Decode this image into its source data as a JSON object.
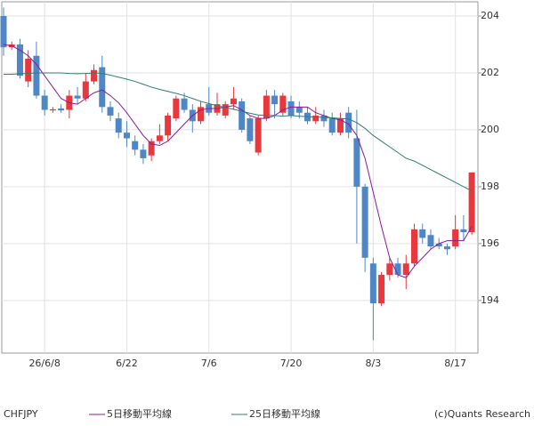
{
  "chart_data": {
    "type": "candlestick",
    "title": "CHFJPY",
    "credit": "(c)Quants Research",
    "categories": [
      null,
      null,
      null,
      null,
      null,
      "26/6/8",
      null,
      null,
      null,
      null,
      null,
      null,
      null,
      null,
      null,
      "6/22",
      null,
      null,
      null,
      null,
      null,
      null,
      null,
      null,
      null,
      "7/6",
      null,
      null,
      null,
      null,
      null,
      null,
      null,
      null,
      null,
      "7/20",
      null,
      null,
      null,
      null,
      null,
      null,
      null,
      null,
      null,
      "8/3",
      null,
      null,
      null,
      null,
      null,
      null,
      null,
      null,
      null,
      "8/17",
      null,
      null
    ],
    "open": [
      204.0,
      202.9,
      203.0,
      201.7,
      202.6,
      201.2,
      200.68,
      200.75,
      200.7,
      201.2,
      201.1,
      201.7,
      202.2,
      200.8,
      200.4,
      199.9,
      199.6,
      199.3,
      199.1,
      199.6,
      199.8,
      200.4,
      201.1,
      200.7,
      200.3,
      200.9,
      200.6,
      200.5,
      200.9,
      201.0,
      200.4,
      199.2,
      200.4,
      201.2,
      200.6,
      201.0,
      200.8,
      200.6,
      200.3,
      200.5,
      200.4,
      199.9,
      200.6,
      199.7,
      198.0,
      195.3,
      193.9,
      194.9,
      195.3,
      194.9,
      195.3,
      196.5,
      196.3,
      196.0,
      195.9,
      195.9,
      196.5,
      196.4
    ],
    "high": [
      204.3,
      203.1,
      203.2,
      202.8,
      203.1,
      201.4,
      200.8,
      200.9,
      201.4,
      201.5,
      202.0,
      202.3,
      202.6,
      201.0,
      200.6,
      200.3,
      199.8,
      199.5,
      199.7,
      200.2,
      200.6,
      201.2,
      201.3,
      200.9,
      201.0,
      201.5,
      201.3,
      201.0,
      201.5,
      201.1,
      200.5,
      200.5,
      201.4,
      201.4,
      201.3,
      201.2,
      201.0,
      200.8,
      200.8,
      200.7,
      200.6,
      200.6,
      200.8,
      200.7,
      198.1,
      195.5,
      195.0,
      195.5,
      195.5,
      195.6,
      196.7,
      196.7,
      196.5,
      196.2,
      196.0,
      197.0,
      197.0,
      198.5
    ],
    "low": [
      202.6,
      202.8,
      201.8,
      201.5,
      201.1,
      200.5,
      200.6,
      200.6,
      200.4,
      200.9,
      201.0,
      201.6,
      200.6,
      200.3,
      199.7,
      199.4,
      199.1,
      198.8,
      198.9,
      199.5,
      199.6,
      200.3,
      200.6,
      199.9,
      200.2,
      200.5,
      200.5,
      200.4,
      200.7,
      199.9,
      199.5,
      199.1,
      200.3,
      200.4,
      200.5,
      200.4,
      200.4,
      200.2,
      200.2,
      200.1,
      199.8,
      199.8,
      199.7,
      196.0,
      195.0,
      192.6,
      193.8,
      194.7,
      194.8,
      194.4,
      195.2,
      196.0,
      195.8,
      195.8,
      195.6,
      195.8,
      196.1,
      196.3
    ],
    "close": [
      202.9,
      203.0,
      201.9,
      202.5,
      201.2,
      200.7,
      200.72,
      200.68,
      201.2,
      201.1,
      201.7,
      202.1,
      200.8,
      200.5,
      199.9,
      199.7,
      199.3,
      199.0,
      199.6,
      199.8,
      200.5,
      201.1,
      200.7,
      200.3,
      200.8,
      200.6,
      200.9,
      200.9,
      201.1,
      200.0,
      199.6,
      200.4,
      201.2,
      200.9,
      201.2,
      200.5,
      200.6,
      200.3,
      200.5,
      200.3,
      199.9,
      200.4,
      199.9,
      198.0,
      195.5,
      193.9,
      194.9,
      195.3,
      194.9,
      195.3,
      196.5,
      196.2,
      195.9,
      195.9,
      195.8,
      196.5,
      196.4,
      198.5
    ],
    "up_color": "#e8383d",
    "down_color": "#4f86c6",
    "lines": [
      {
        "name": "5日移動平均線",
        "color": "#8b1a9b",
        "values": [
          203.0,
          202.95,
          202.8,
          202.6,
          202.3,
          201.9,
          201.5,
          201.1,
          200.95,
          200.9,
          201.1,
          201.3,
          201.4,
          201.2,
          200.95,
          200.6,
          200.2,
          199.8,
          199.5,
          199.45,
          199.6,
          199.9,
          200.2,
          200.5,
          200.7,
          200.75,
          200.75,
          200.8,
          200.85,
          200.7,
          200.5,
          200.4,
          200.4,
          200.5,
          200.7,
          200.8,
          200.8,
          200.8,
          200.6,
          200.5,
          200.4,
          200.35,
          200.2,
          199.8,
          199.0,
          197.8,
          196.6,
          195.5,
          194.9,
          194.8,
          195.2,
          195.5,
          195.8,
          196.0,
          196.1,
          196.1,
          196.1,
          196.6
        ]
      },
      {
        "name": "25日移動平均線",
        "color": "#2f7f6f",
        "values": [
          201.95,
          201.95,
          201.97,
          201.98,
          202.0,
          202.0,
          202.0,
          202.0,
          201.98,
          201.97,
          201.98,
          202.0,
          201.98,
          201.92,
          201.85,
          201.78,
          201.7,
          201.6,
          201.5,
          201.42,
          201.35,
          201.28,
          201.2,
          201.1,
          201.0,
          200.92,
          200.85,
          200.78,
          200.72,
          200.65,
          200.58,
          200.52,
          200.5,
          200.5,
          200.48,
          200.5,
          200.48,
          200.46,
          200.45,
          200.43,
          200.42,
          200.4,
          200.38,
          200.25,
          200.05,
          199.8,
          199.6,
          199.4,
          199.2,
          199.0,
          198.9,
          198.75,
          198.6,
          198.45,
          198.3,
          198.15,
          198.0,
          197.85
        ]
      }
    ],
    "ylim": [
      192.15,
      204.5
    ],
    "yticks": [
      194,
      196,
      198,
      200,
      202,
      204
    ],
    "grid": true
  }
}
